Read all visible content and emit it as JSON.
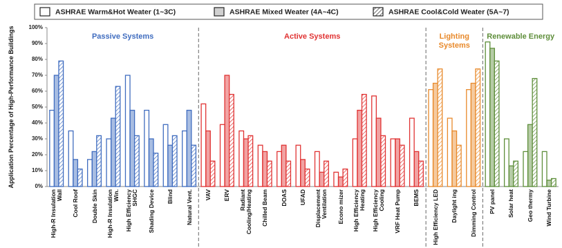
{
  "chart_data": {
    "type": "bar",
    "y_label": "Application Percentage of High-Performance Buildings",
    "ylim": [
      0,
      100
    ],
    "yticks": [
      {
        "value": 0,
        "label": "0%"
      },
      {
        "value": 10,
        "label": "10%"
      },
      {
        "value": 20,
        "label": "20%"
      },
      {
        "value": 30,
        "label": "30%"
      },
      {
        "value": 40,
        "label": "40%"
      },
      {
        "value": 50,
        "label": "50%"
      },
      {
        "value": 60,
        "label": "60%"
      },
      {
        "value": 70,
        "label": "70%"
      },
      {
        "value": 80,
        "label": "80%"
      },
      {
        "value": 90,
        "label": "90%"
      },
      {
        "value": 100,
        "label": "100%"
      }
    ],
    "groups": [
      {
        "title": "Passive Systems",
        "color": "#3f6cbf",
        "categories": [
          "High-R Insulation Wall",
          "Cool Roof",
          "Double Skin",
          "High-R Insulation Win.",
          "High Efficiency SHGC",
          "Shading Device",
          "Blind",
          "Natural Vent."
        ]
      },
      {
        "title": "Active Systems",
        "color": "#e03232",
        "categories": [
          "VAV",
          "ERV",
          "Radiant Cooling/Heating",
          "Chilled Beam",
          "DOAS",
          "UFAD",
          "Displacement Ventilation",
          "Econo mizer",
          "High Efficiency Heating",
          "High Efficiency Cooling",
          "VRF Heat Pump",
          "BEMS"
        ]
      },
      {
        "title": "Lighting Systems",
        "color": "#e8892a",
        "categories": [
          "High Efficiency LED",
          "Daylight ing",
          "Dimming Control"
        ]
      },
      {
        "title": "Renewable Energy",
        "color": "#5e8e3a",
        "categories": [
          "PV panel",
          "Solar heat",
          "Geo thermy",
          "Wind Turbine"
        ]
      }
    ],
    "series": [
      {
        "name": "ASHRAE Warm&Hot Weater (1~3C)",
        "style": "outline",
        "values": [
          48,
          35,
          17,
          30,
          70,
          48,
          39,
          35,
          52,
          39,
          35,
          26,
          22,
          26,
          22,
          9,
          30,
          57,
          30,
          43,
          61,
          43,
          61,
          91,
          30,
          22,
          22
        ]
      },
      {
        "name": "ASHRAE Mixed Weater (4A~4C)",
        "style": "filled",
        "values": [
          70,
          17,
          22,
          43,
          48,
          30,
          26,
          48,
          35,
          70,
          30,
          22,
          26,
          17,
          9,
          6,
          48,
          43,
          30,
          22,
          65,
          35,
          65,
          87,
          13,
          39,
          4
        ]
      },
      {
        "name": "ASHRAE Cool&Cold Weater (5A~7)",
        "style": "hatched",
        "values": [
          79,
          11,
          32,
          63,
          32,
          21,
          32,
          26,
          16,
          58,
          32,
          16,
          16,
          11,
          16,
          11,
          58,
          32,
          26,
          16,
          74,
          26,
          74,
          79,
          16,
          68,
          5
        ]
      }
    ]
  }
}
